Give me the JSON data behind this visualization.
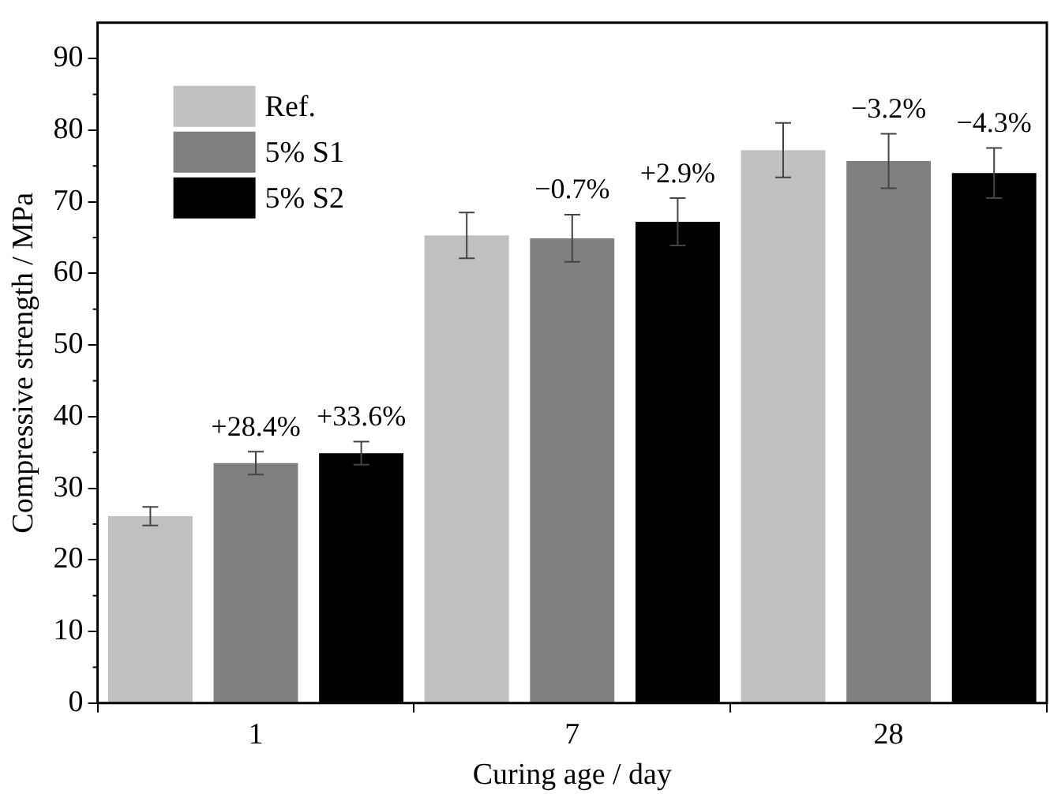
{
  "chart_data": {
    "type": "bar",
    "xlabel": "Curing age / day",
    "ylabel": "Compressive strength / MPa",
    "categories": [
      "1",
      "7",
      "28"
    ],
    "series": [
      {
        "name": "Ref.",
        "color": "#c0c0c0",
        "values": [
          26.1,
          65.3,
          77.2
        ],
        "errors": [
          1.3,
          3.2,
          3.8
        ]
      },
      {
        "name": "5% S1",
        "color": "#808080",
        "values": [
          33.5,
          64.9,
          75.7
        ],
        "errors": [
          1.6,
          3.3,
          3.8
        ]
      },
      {
        "name": "5% S2",
        "color": "#000000",
        "values": [
          34.9,
          67.2,
          74.0
        ],
        "errors": [
          1.6,
          3.3,
          3.5
        ]
      }
    ],
    "annotations": [
      "+28.4%",
      "+33.6%",
      "−0.7%",
      "+2.9%",
      "−3.2%",
      "−4.3%"
    ],
    "ylim": [
      0,
      95
    ],
    "yticks": [
      0,
      10,
      20,
      30,
      40,
      50,
      60,
      70,
      80,
      90
    ],
    "grid": false,
    "legend": "top left"
  }
}
